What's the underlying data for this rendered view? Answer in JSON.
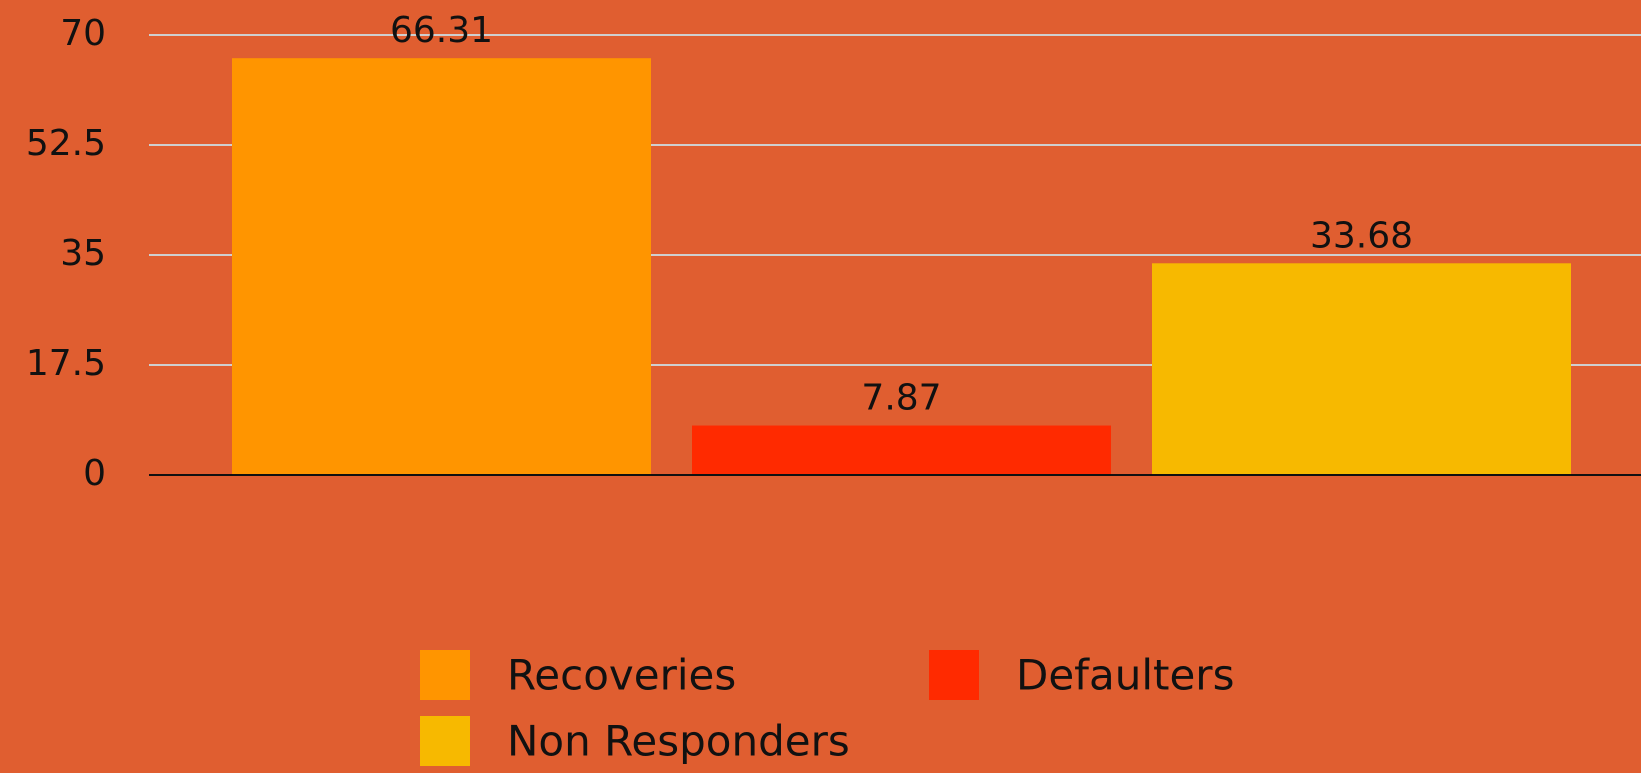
{
  "chart_data": {
    "type": "bar",
    "categories": [
      null
    ],
    "series": [
      {
        "name": "Recoveries",
        "color": "#ff9500",
        "values": [
          66.31
        ]
      },
      {
        "name": "Defaulters",
        "color": "#ff2a00",
        "values": [
          7.87
        ]
      },
      {
        "name": "Non Responders",
        "color": "#f7b900",
        "values": [
          33.68
        ]
      }
    ],
    "ylim": [
      0,
      70
    ],
    "yticks": [
      0,
      17.5,
      35,
      52.5,
      70
    ],
    "grid": true
  }
}
